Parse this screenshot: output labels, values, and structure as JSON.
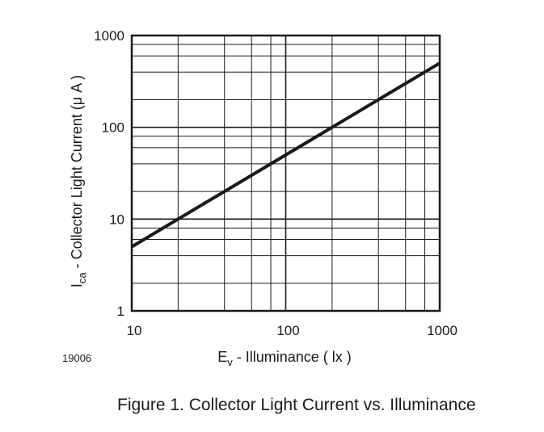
{
  "caption": "Figure 1. Collector Light Current vs. Illuminance",
  "figure_code": "19006",
  "chart_data": {
    "type": "line",
    "x_scale": "log",
    "y_scale": "log",
    "xlim": [
      10,
      1000
    ],
    "ylim": [
      1,
      1000
    ],
    "grid": true,
    "x_ticks": [
      {
        "value": 10,
        "label": "10"
      },
      {
        "value": 100,
        "label": "100"
      },
      {
        "value": 1000,
        "label": "1000"
      }
    ],
    "y_ticks": [
      {
        "value": 1,
        "label": "1"
      },
      {
        "value": 10,
        "label": "10"
      },
      {
        "value": 100,
        "label": "100"
      },
      {
        "value": 1000,
        "label": "1000"
      }
    ],
    "x_grid_values": [
      20,
      40,
      60,
      80,
      100,
      200,
      400,
      600,
      800
    ],
    "y_grid_values": [
      2,
      4,
      6,
      8,
      10,
      20,
      40,
      60,
      80,
      100,
      200,
      400,
      600,
      800
    ],
    "xlabel": {
      "symbol": "E",
      "subscript": "v",
      "text": " - Illuminance ( lx )"
    },
    "ylabel": {
      "symbol": "I",
      "subscript": "ca",
      "text": " - Collector Light Current (μ A )"
    },
    "series": [
      {
        "x": [
          10,
          20,
          40,
          100,
          200,
          400,
          1000
        ],
        "y": [
          5,
          10,
          20,
          50,
          100,
          200,
          500
        ]
      }
    ]
  }
}
